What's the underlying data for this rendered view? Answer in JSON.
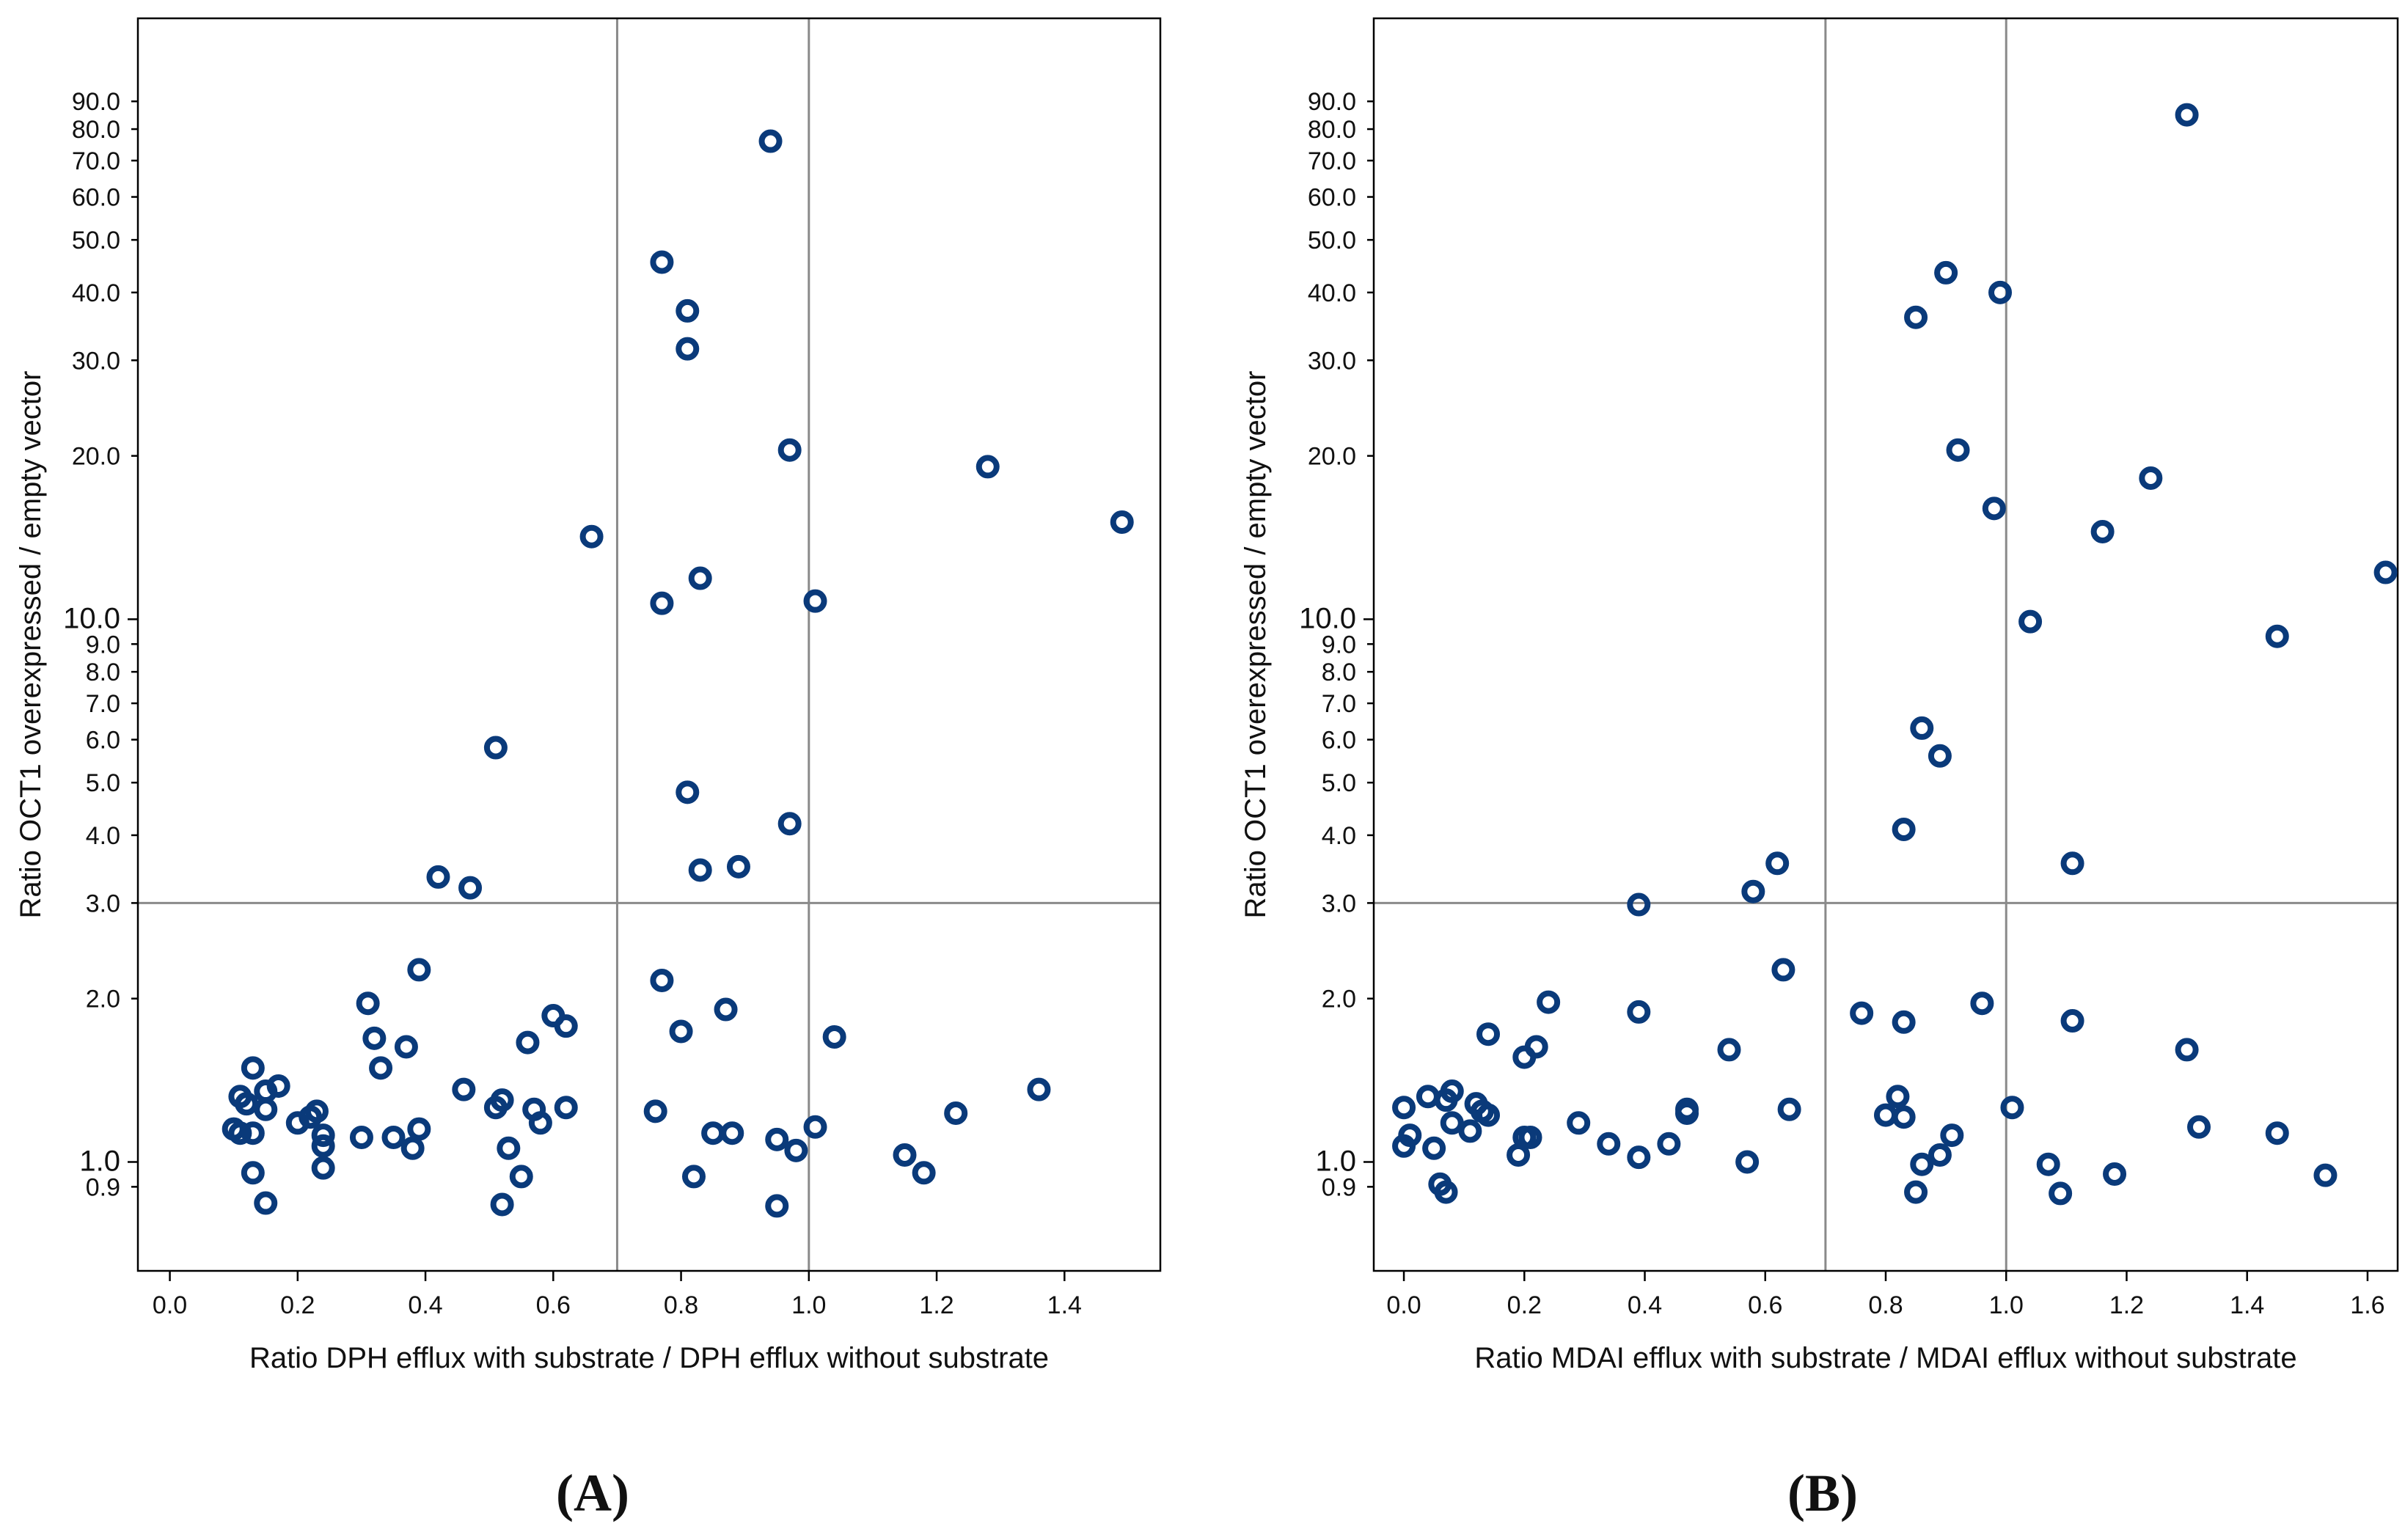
{
  "figure": {
    "panel_labels": [
      "(A)",
      "(B)"
    ],
    "colors": {
      "marker": "#0a3a7a",
      "frame": "#000000",
      "reference_line": "#8a8a8a"
    }
  },
  "chart_data": [
    {
      "type": "scatter",
      "panel": "(A)",
      "xlabel": "Ratio DPH efflux with substrate / DPH efflux without substrate",
      "ylabel": "Ratio OCT1 overexpressed / empty vector",
      "yscale": "log",
      "xlim": [
        -0.05,
        1.55
      ],
      "ylim": [
        0.63,
        128
      ],
      "xticks": [
        "0.0",
        "0.2",
        "0.4",
        "0.6",
        "0.8",
        "1.0",
        "1.2",
        "1.4"
      ],
      "yticks": [
        "0.9",
        "1.0",
        "2.0",
        "3.0",
        "4.0",
        "5.0",
        "6.0",
        "7.0",
        "8.0",
        "9.0",
        "10.0",
        "20.0",
        "30.0",
        "40.0",
        "50.0",
        "60.0",
        "70.0",
        "80.0",
        "90.0"
      ],
      "reference_lines": {
        "vertical": [
          0.7,
          1.0
        ],
        "horizontal": [
          3.0
        ]
      },
      "points": [
        [
          0.94,
          76
        ],
        [
          0.77,
          45.5
        ],
        [
          0.81,
          37
        ],
        [
          0.81,
          31.5
        ],
        [
          0.97,
          20.5
        ],
        [
          1.28,
          19.1
        ],
        [
          1.49,
          15.1
        ],
        [
          0.66,
          14.2
        ],
        [
          0.83,
          11.9
        ],
        [
          0.77,
          10.7
        ],
        [
          1.01,
          10.8
        ],
        [
          0.51,
          5.8
        ],
        [
          0.81,
          4.8
        ],
        [
          0.97,
          4.2
        ],
        [
          0.89,
          3.5
        ],
        [
          0.83,
          3.45
        ],
        [
          0.42,
          3.35
        ],
        [
          0.47,
          3.2
        ],
        [
          0.39,
          2.26
        ],
        [
          0.77,
          2.16
        ],
        [
          0.31,
          1.96
        ],
        [
          0.87,
          1.91
        ],
        [
          0.6,
          1.86
        ],
        [
          0.62,
          1.78
        ],
        [
          0.8,
          1.74
        ],
        [
          1.04,
          1.7
        ],
        [
          0.32,
          1.69
        ],
        [
          0.56,
          1.66
        ],
        [
          0.37,
          1.63
        ],
        [
          0.13,
          1.49
        ],
        [
          0.33,
          1.49
        ],
        [
          0.17,
          1.38
        ],
        [
          0.46,
          1.36
        ],
        [
          1.36,
          1.36
        ],
        [
          0.15,
          1.35
        ],
        [
          0.11,
          1.32
        ],
        [
          0.52,
          1.3
        ],
        [
          0.12,
          1.28
        ],
        [
          0.51,
          1.26
        ],
        [
          0.62,
          1.26
        ],
        [
          0.15,
          1.25
        ],
        [
          0.57,
          1.25
        ],
        [
          0.23,
          1.24
        ],
        [
          0.76,
          1.24
        ],
        [
          1.23,
          1.23
        ],
        [
          0.22,
          1.21
        ],
        [
          0.2,
          1.18
        ],
        [
          0.58,
          1.18
        ],
        [
          0.1,
          1.15
        ],
        [
          0.39,
          1.15
        ],
        [
          1.01,
          1.16
        ],
        [
          0.11,
          1.13
        ],
        [
          0.13,
          1.13
        ],
        [
          0.85,
          1.13
        ],
        [
          0.88,
          1.13
        ],
        [
          0.24,
          1.12
        ],
        [
          0.3,
          1.11
        ],
        [
          0.35,
          1.11
        ],
        [
          0.95,
          1.1
        ],
        [
          0.24,
          1.07
        ],
        [
          0.38,
          1.06
        ],
        [
          0.53,
          1.06
        ],
        [
          0.98,
          1.05
        ],
        [
          1.15,
          1.03
        ],
        [
          0.24,
          0.975
        ],
        [
          0.13,
          0.955
        ],
        [
          1.18,
          0.955
        ],
        [
          0.55,
          0.94
        ],
        [
          0.82,
          0.94
        ],
        [
          0.15,
          0.84
        ],
        [
          0.52,
          0.835
        ],
        [
          0.95,
          0.83
        ]
      ]
    },
    {
      "type": "scatter",
      "panel": "(B)",
      "xlabel": "Ratio MDAI efflux with substrate / MDAI efflux without substrate",
      "ylabel": "Ratio OCT1 overexpressed / empty vector",
      "yscale": "log",
      "xlim": [
        -0.05,
        1.65
      ],
      "ylim": [
        0.63,
        128
      ],
      "xticks": [
        "0.0",
        "0.2",
        "0.4",
        "0.6",
        "0.8",
        "1.0",
        "1.2",
        "1.4",
        "1.6"
      ],
      "yticks": [
        "0.9",
        "1.0",
        "2.0",
        "3.0",
        "4.0",
        "5.0",
        "6.0",
        "7.0",
        "8.0",
        "9.0",
        "10.0",
        "20.0",
        "30.0",
        "40.0",
        "50.0",
        "60.0",
        "70.0",
        "80.0",
        "90.0"
      ],
      "reference_lines": {
        "vertical": [
          0.7,
          1.0
        ],
        "horizontal": [
          3.0
        ]
      },
      "points": [
        [
          1.3,
          85
        ],
        [
          0.9,
          43.5
        ],
        [
          0.99,
          40
        ],
        [
          0.85,
          36
        ],
        [
          0.92,
          20.5
        ],
        [
          1.24,
          18.2
        ],
        [
          0.98,
          16
        ],
        [
          1.16,
          14.5
        ],
        [
          1.63,
          12.2
        ],
        [
          1.04,
          9.9
        ],
        [
          1.45,
          9.3
        ],
        [
          0.86,
          6.3
        ],
        [
          0.89,
          5.6
        ],
        [
          0.83,
          4.1
        ],
        [
          0.62,
          3.55
        ],
        [
          1.11,
          3.55
        ],
        [
          0.58,
          3.15
        ],
        [
          0.39,
          2.98
        ],
        [
          0.63,
          2.26
        ],
        [
          0.24,
          1.97
        ],
        [
          0.96,
          1.96
        ],
        [
          0.39,
          1.89
        ],
        [
          0.76,
          1.88
        ],
        [
          0.83,
          1.81
        ],
        [
          1.11,
          1.82
        ],
        [
          0.14,
          1.72
        ],
        [
          0.22,
          1.63
        ],
        [
          0.54,
          1.61
        ],
        [
          1.3,
          1.61
        ],
        [
          0.2,
          1.56
        ],
        [
          0.08,
          1.35
        ],
        [
          0.04,
          1.32
        ],
        [
          0.07,
          1.3
        ],
        [
          0.12,
          1.28
        ],
        [
          0.82,
          1.32
        ],
        [
          0.0,
          1.26
        ],
        [
          0.47,
          1.25
        ],
        [
          1.01,
          1.26
        ],
        [
          0.13,
          1.24
        ],
        [
          0.47,
          1.23
        ],
        [
          0.64,
          1.25
        ],
        [
          0.14,
          1.22
        ],
        [
          0.8,
          1.22
        ],
        [
          0.83,
          1.21
        ],
        [
          0.08,
          1.18
        ],
        [
          0.29,
          1.18
        ],
        [
          0.11,
          1.14
        ],
        [
          1.32,
          1.16
        ],
        [
          0.01,
          1.12
        ],
        [
          0.2,
          1.11
        ],
        [
          0.21,
          1.11
        ],
        [
          0.91,
          1.12
        ],
        [
          1.45,
          1.13
        ],
        [
          0.0,
          1.07
        ],
        [
          0.05,
          1.06
        ],
        [
          0.34,
          1.08
        ],
        [
          0.44,
          1.08
        ],
        [
          0.19,
          1.03
        ],
        [
          0.39,
          1.02
        ],
        [
          0.89,
          1.03
        ],
        [
          0.57,
          1.0
        ],
        [
          0.86,
          0.99
        ],
        [
          1.07,
          0.99
        ],
        [
          1.18,
          0.95
        ],
        [
          1.53,
          0.945
        ],
        [
          0.06,
          0.91
        ],
        [
          0.07,
          0.88
        ],
        [
          0.85,
          0.88
        ],
        [
          1.09,
          0.875
        ]
      ]
    }
  ]
}
